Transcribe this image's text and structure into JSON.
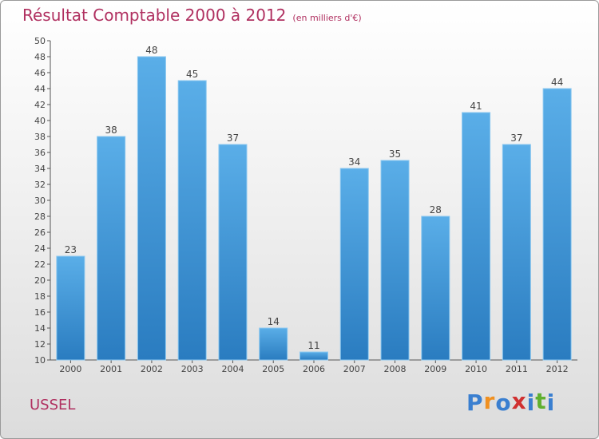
{
  "chart_data": {
    "type": "bar",
    "title": "Résultat Comptable 2000 à 2012",
    "subtitle": "(en milliers d'€)",
    "categories": [
      "2000",
      "2001",
      "2002",
      "2003",
      "2004",
      "2005",
      "2006",
      "2007",
      "2008",
      "2009",
      "2010",
      "2011",
      "2012"
    ],
    "values": [
      23,
      38,
      48,
      45,
      37,
      14,
      11,
      34,
      35,
      28,
      41,
      37,
      44
    ],
    "ylim": [
      10,
      50
    ],
    "ytick_step": 2,
    "xlabel": "",
    "ylabel": "",
    "grid": false,
    "legend": "none"
  },
  "location": {
    "name": "USSEL"
  },
  "logo": {
    "text": "Proxiti",
    "letters": [
      "P",
      "r",
      "o",
      "x",
      "i",
      "t",
      "i"
    ]
  },
  "colors": {
    "title": "#b03060",
    "bar_light": "#5aaee8",
    "bar_dark": "#2a7cc0",
    "axis": "#555555",
    "logo": [
      "#3a7fd0",
      "#f09020",
      "#3a7fd0",
      "#d03030",
      "#3a7fd0",
      "#60b030",
      "#3a7fd0"
    ]
  }
}
